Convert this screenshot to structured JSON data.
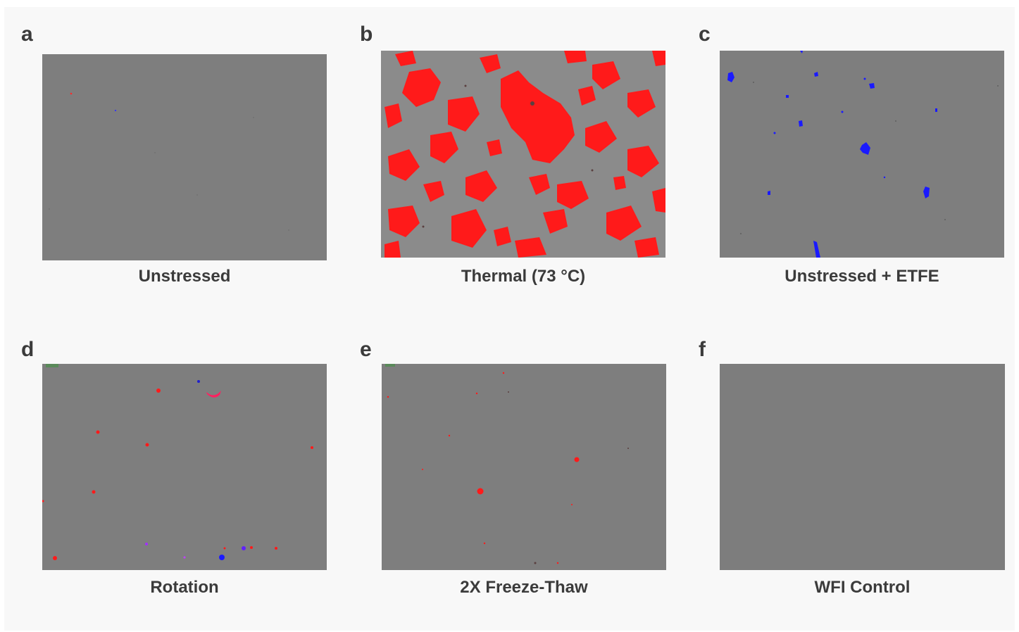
{
  "panels": [
    {
      "letter": "a",
      "caption": "Unstressed"
    },
    {
      "letter": "b",
      "caption": "Thermal (73 °C)"
    },
    {
      "letter": "c",
      "caption": "Unstressed + ETFE"
    },
    {
      "letter": "d",
      "caption": "Rotation"
    },
    {
      "letter": "e",
      "caption": "2X Freeze-Thaw"
    },
    {
      "letter": "f",
      "caption": "WFI Control"
    }
  ],
  "colors": {
    "background": "#f8f8f8",
    "image_gray": "#7c7c7c",
    "particle_red": "#ff1a1a",
    "particle_blue": "#1a1aff",
    "particle_purple": "#8a2be2",
    "text": "#3b3b3b"
  }
}
